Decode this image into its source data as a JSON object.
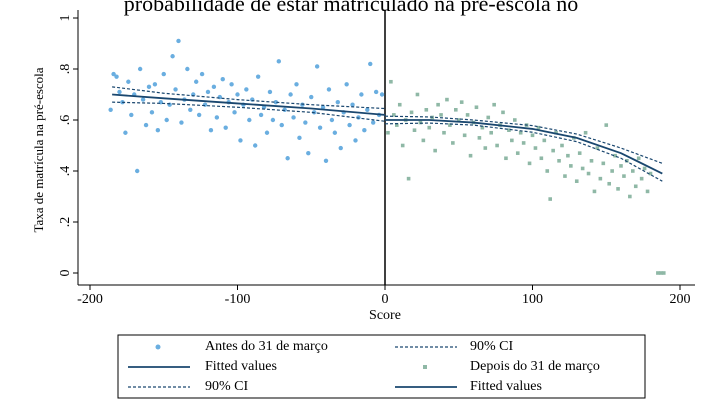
{
  "chart_data": {
    "type": "scatter",
    "title": "probabilidade de estar matriculado na pré-escola no",
    "xlabel": "Score",
    "ylabel": "Taxa de matrícula na pré-escola",
    "xlim": [
      -200,
      200
    ],
    "xticks": [
      -200,
      -100,
      0,
      100,
      200
    ],
    "ylim": [
      0,
      1
    ],
    "yticks": [
      0,
      {
        "value": 0.2,
        "label": ".2"
      },
      {
        "value": 0.4,
        "label": ".4"
      },
      {
        "value": 0.6,
        "label": ".6"
      },
      {
        "value": 0.8,
        "label": ".8"
      },
      1
    ],
    "vline": 0,
    "legend": "bottom",
    "series": [
      {
        "name": "Antes do 31 de março",
        "color": "#6aaee0",
        "style": "circle",
        "x": [
          -186,
          -184,
          -182,
          -180,
          -178,
          -176,
          -174,
          -172,
          -170,
          -168,
          -166,
          -164,
          -162,
          -160,
          -158,
          -156,
          -154,
          -152,
          -150,
          -148,
          -146,
          -144,
          -142,
          -140,
          -138,
          -136,
          -134,
          -132,
          -130,
          -128,
          -126,
          -124,
          -122,
          -120,
          -118,
          -116,
          -114,
          -112,
          -110,
          -108,
          -106,
          -104,
          -102,
          -100,
          -98,
          -96,
          -94,
          -92,
          -90,
          -88,
          -86,
          -84,
          -82,
          -80,
          -78,
          -76,
          -74,
          -72,
          -70,
          -68,
          -66,
          -64,
          -62,
          -60,
          -58,
          -56,
          -54,
          -52,
          -50,
          -48,
          -46,
          -44,
          -42,
          -40,
          -38,
          -36,
          -34,
          -32,
          -30,
          -28,
          -26,
          -24,
          -22,
          -20,
          -18,
          -16,
          -14,
          -12,
          -10,
          -8,
          -6,
          -4,
          -2
        ],
        "values": [
          0.64,
          0.78,
          0.77,
          0.71,
          0.67,
          0.55,
          0.75,
          0.62,
          0.7,
          0.4,
          0.8,
          0.68,
          0.58,
          0.73,
          0.63,
          0.74,
          0.56,
          0.67,
          0.78,
          0.6,
          0.66,
          0.85,
          0.72,
          0.91,
          0.59,
          0.68,
          0.8,
          0.64,
          0.7,
          0.75,
          0.62,
          0.78,
          0.66,
          0.71,
          0.56,
          0.73,
          0.61,
          0.69,
          0.76,
          0.57,
          0.67,
          0.74,
          0.63,
          0.7,
          0.52,
          0.66,
          0.72,
          0.6,
          0.68,
          0.5,
          0.77,
          0.62,
          0.65,
          0.55,
          0.71,
          0.6,
          0.67,
          0.83,
          0.58,
          0.64,
          0.45,
          0.7,
          0.61,
          0.74,
          0.53,
          0.66,
          0.59,
          0.47,
          0.69,
          0.63,
          0.81,
          0.57,
          0.65,
          0.44,
          0.72,
          0.6,
          0.55,
          0.67,
          0.49,
          0.63,
          0.74,
          0.58,
          0.66,
          0.52,
          0.61,
          0.7,
          0.56,
          0.64,
          0.82,
          0.59,
          0.71,
          0.62,
          0.7
        ]
      },
      {
        "name": "90% CI",
        "color": "#1a476f",
        "style": "dotted",
        "x": [
          -185,
          -150,
          -100,
          -50,
          0
        ],
        "values": [
          0.73,
          0.705,
          0.68,
          0.66,
          0.645
        ],
        "lower": [
          0.67,
          0.665,
          0.65,
          0.63,
          0.595
        ]
      },
      {
        "name": "Fitted values",
        "color": "#1a476f",
        "style": "solid",
        "x": [
          -185,
          -150,
          -100,
          -50,
          0
        ],
        "values": [
          0.7,
          0.685,
          0.665,
          0.645,
          0.62
        ]
      },
      {
        "name": "Depois do 31 de março",
        "color": "#8fb8a6",
        "style": "square",
        "x": [
          2,
          4,
          6,
          8,
          10,
          12,
          14,
          16,
          18,
          20,
          22,
          24,
          26,
          28,
          30,
          32,
          34,
          36,
          38,
          40,
          42,
          44,
          46,
          48,
          50,
          52,
          54,
          56,
          58,
          60,
          62,
          64,
          66,
          68,
          70,
          72,
          74,
          76,
          78,
          80,
          82,
          84,
          86,
          88,
          90,
          92,
          94,
          96,
          98,
          100,
          102,
          104,
          106,
          108,
          110,
          112,
          114,
          116,
          118,
          120,
          122,
          124,
          126,
          128,
          130,
          132,
          134,
          136,
          138,
          140,
          142,
          144,
          146,
          148,
          150,
          152,
          154,
          156,
          158,
          160,
          162,
          164,
          166,
          168,
          170,
          172,
          174,
          176,
          178,
          180,
          185,
          187,
          189
        ],
        "values": [
          0.55,
          0.75,
          0.62,
          0.58,
          0.66,
          0.5,
          0.6,
          0.37,
          0.63,
          0.56,
          0.7,
          0.59,
          0.52,
          0.64,
          0.57,
          0.61,
          0.48,
          0.66,
          0.62,
          0.55,
          0.68,
          0.58,
          0.51,
          0.64,
          0.6,
          0.67,
          0.54,
          0.62,
          0.46,
          0.59,
          0.65,
          0.53,
          0.57,
          0.49,
          0.61,
          0.55,
          0.66,
          0.5,
          0.58,
          0.63,
          0.45,
          0.56,
          0.52,
          0.6,
          0.47,
          0.55,
          0.51,
          0.58,
          0.43,
          0.54,
          0.49,
          0.57,
          0.45,
          0.52,
          0.4,
          0.29,
          0.48,
          0.55,
          0.44,
          0.5,
          0.38,
          0.46,
          0.42,
          0.53,
          0.36,
          0.47,
          0.41,
          0.55,
          0.39,
          0.44,
          0.32,
          0.49,
          0.37,
          0.43,
          0.58,
          0.35,
          0.4,
          0.46,
          0.33,
          0.42,
          0.38,
          0.44,
          0.3,
          0.4,
          0.34,
          0.45,
          0.37,
          0.41,
          0.32,
          0.39,
          0,
          0,
          0
        ]
      },
      {
        "name": "90% CI",
        "color": "#1a476f",
        "style": "dotted",
        "x": [
          0,
          30,
          60,
          100,
          130,
          160,
          188
        ],
        "values": [
          0.615,
          0.612,
          0.6,
          0.578,
          0.545,
          0.49,
          0.43
        ],
        "lower": [
          0.585,
          0.588,
          0.58,
          0.552,
          0.515,
          0.45,
          0.36
        ]
      },
      {
        "name": "Fitted values",
        "color": "#1a476f",
        "style": "solid",
        "x": [
          0,
          30,
          60,
          100,
          130,
          160,
          188
        ],
        "values": [
          0.6,
          0.6,
          0.59,
          0.565,
          0.53,
          0.47,
          0.39
        ]
      }
    ]
  }
}
